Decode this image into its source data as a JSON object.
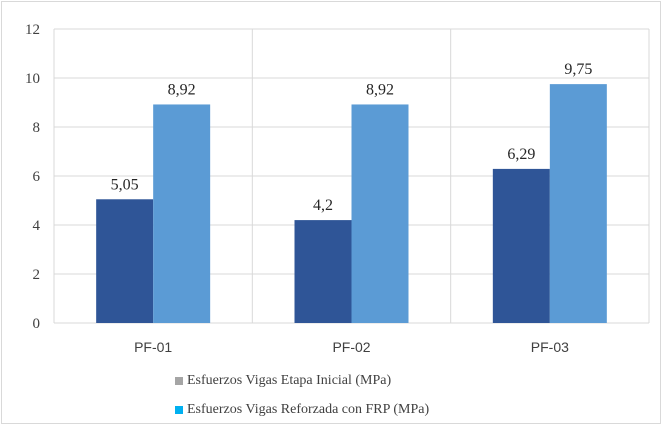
{
  "chart_data": {
    "type": "bar",
    "categories": [
      "PF-01",
      "PF-02",
      "PF-03"
    ],
    "series": [
      {
        "name": "Esfuerzos Vigas Etapa Inicial (MPa)",
        "values": [
          5.05,
          4.2,
          6.29
        ],
        "labels": [
          "5,05",
          "4,2",
          "6,29"
        ],
        "color": "#2f5597"
      },
      {
        "name": "Esfuerzos Vigas Reforzada con FRP (MPa)",
        "values": [
          8.92,
          8.92,
          9.75
        ],
        "labels": [
          "8,92",
          "8,92",
          "9,75"
        ],
        "color": "#5b9bd5"
      }
    ],
    "legend_swatch_colors": [
      "#a5a5a5",
      "#00b0f0"
    ],
    "yticks": [
      "0",
      "2",
      "4",
      "6",
      "8",
      "10",
      "12"
    ],
    "ylim": [
      0,
      12
    ],
    "grid": "horizontal and vertical",
    "legend_position": "bottom",
    "title": "",
    "xlabel": "",
    "ylabel": ""
  }
}
